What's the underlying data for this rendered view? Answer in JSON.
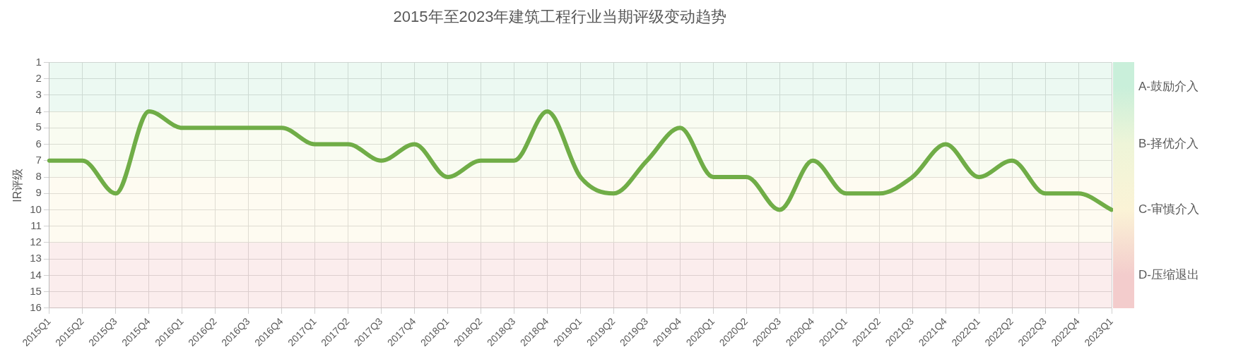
{
  "chart_data": {
    "type": "line",
    "title": "2015年至2023年建筑工程行业当期评级变动趋势",
    "ylabel": "IR评级",
    "categories": [
      "2015Q1",
      "2015Q2",
      "2015Q3",
      "2015Q4",
      "2016Q1",
      "2016Q2",
      "2016Q3",
      "2016Q4",
      "2017Q1",
      "2017Q2",
      "2017Q3",
      "2017Q4",
      "2018Q1",
      "2018Q2",
      "2018Q3",
      "2018Q4",
      "2019Q1",
      "2019Q2",
      "2019Q3",
      "2019Q4",
      "2020Q1",
      "2020Q2",
      "2020Q3",
      "2020Q4",
      "2021Q1",
      "2021Q2",
      "2021Q3",
      "2021Q4",
      "2022Q1",
      "2022Q2",
      "2022Q3",
      "2022Q4",
      "2023Q1"
    ],
    "series": [
      {
        "color": "#70ad47",
        "values": [
          7,
          7,
          9,
          4,
          5,
          5,
          5,
          5,
          6,
          6,
          7,
          6,
          8,
          7,
          7,
          4,
          8,
          9,
          7,
          5,
          8,
          8,
          10,
          7,
          9,
          9,
          8,
          6,
          8,
          7,
          9,
          9,
          10
        ]
      }
    ],
    "ylim": [
      16,
      1
    ],
    "yticks": [
      1,
      2,
      3,
      4,
      5,
      6,
      7,
      8,
      9,
      10,
      11,
      12,
      13,
      14,
      15,
      16
    ],
    "grid": true,
    "marker": "none",
    "line_style": "solid",
    "bands": [
      {
        "axis": "y",
        "from": 1,
        "to": 4,
        "label": "A-鼓励介入",
        "color": "#c9efda"
      },
      {
        "axis": "y",
        "from": 4,
        "to": 8,
        "label": "B-择优介入",
        "color": "#eef5d8"
      },
      {
        "axis": "y",
        "from": 8,
        "to": 12,
        "label": "C-审慎介入",
        "color": "#fbf3d6"
      },
      {
        "axis": "y",
        "from": 12,
        "to": 16,
        "label": "D-压缩退出",
        "color": "#f3cccc"
      }
    ]
  }
}
